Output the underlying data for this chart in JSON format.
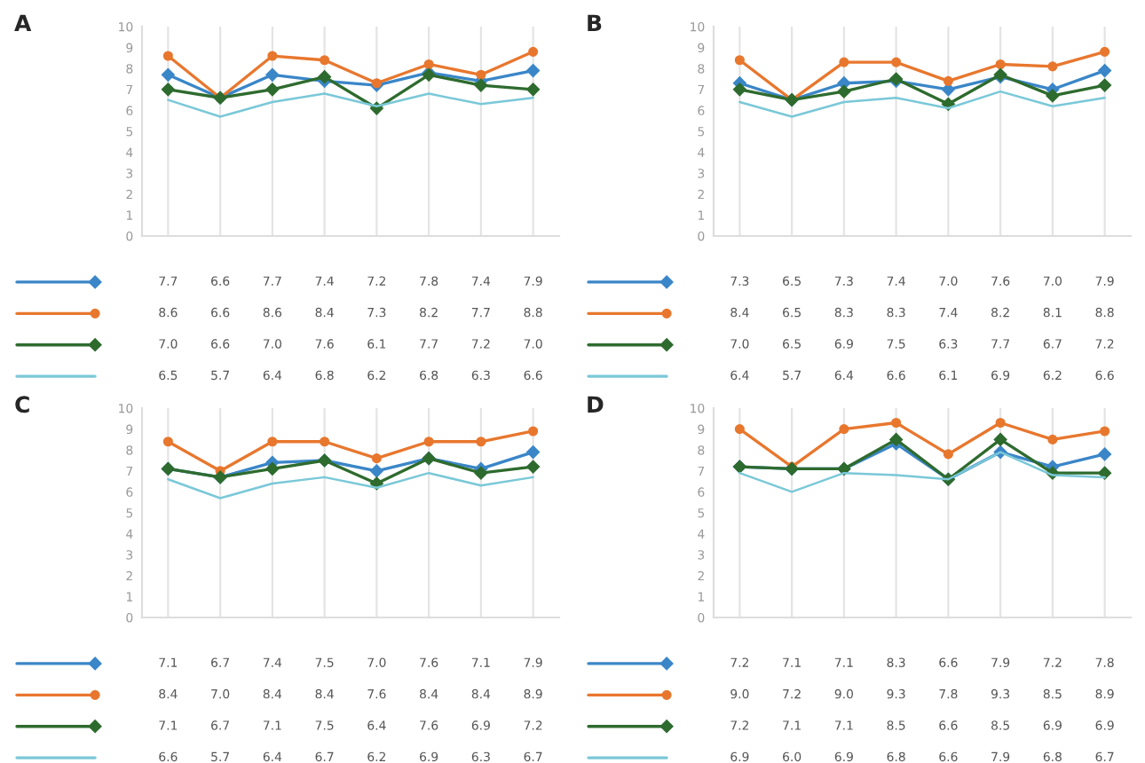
{
  "chart_data": [
    {
      "type": "line",
      "title": "A",
      "categories": [
        null,
        null,
        null,
        null,
        null,
        null,
        null,
        null
      ],
      "ylim": [
        0,
        10
      ],
      "yticks": [
        0,
        1,
        2,
        3,
        4,
        5,
        6,
        7,
        8,
        9,
        10
      ],
      "grid": "x",
      "series": [
        {
          "color": "#3a86c8",
          "marker": "diamond",
          "values": [
            7.7,
            6.6,
            7.7,
            7.4,
            7.2,
            7.8,
            7.4,
            7.9
          ],
          "value_labels": [
            "7.7",
            "6.6",
            "7.7",
            "7.4",
            "7.2",
            "7.8",
            "7.4",
            "7.9"
          ]
        },
        {
          "color": "#e8772e",
          "marker": "circle",
          "values": [
            8.6,
            6.6,
            8.6,
            8.4,
            7.3,
            8.2,
            7.7,
            8.8
          ],
          "value_labels": [
            "8.6",
            "6.6",
            "8.6",
            "8.4",
            "7.3",
            "8.2",
            "7.7",
            "8.8"
          ]
        },
        {
          "color": "#2e6b2e",
          "marker": "diamond",
          "values": [
            7.0,
            6.6,
            7.0,
            7.6,
            6.1,
            7.7,
            7.2,
            7.0
          ],
          "value_labels": [
            "7.0",
            "6.6",
            "7.0",
            "7.6",
            "6.1",
            "7.7",
            "7.2",
            "7.0"
          ]
        },
        {
          "color": "#7ac8d8",
          "marker": "none",
          "values": [
            6.5,
            5.7,
            6.4,
            6.8,
            6.2,
            6.8,
            6.3,
            6.6
          ],
          "value_labels": [
            "6.5",
            "5.7",
            "6.4",
            "6.8",
            "6.2",
            "6.8",
            "6.3",
            "6.6"
          ]
        }
      ]
    },
    {
      "type": "line",
      "title": "B",
      "categories": [
        null,
        null,
        null,
        null,
        null,
        null,
        null,
        null
      ],
      "ylim": [
        0,
        10
      ],
      "yticks": [
        0,
        1,
        2,
        3,
        4,
        5,
        6,
        7,
        8,
        9,
        10
      ],
      "grid": "x",
      "series": [
        {
          "color": "#3a86c8",
          "marker": "diamond",
          "values": [
            7.3,
            6.5,
            7.3,
            7.4,
            7.0,
            7.6,
            7.0,
            7.9
          ],
          "value_labels": [
            "7.3",
            "6.5",
            "7.3",
            "7.4",
            "7.0",
            "7.6",
            "7.0",
            "7.9"
          ]
        },
        {
          "color": "#e8772e",
          "marker": "circle",
          "values": [
            8.4,
            6.5,
            8.3,
            8.3,
            7.4,
            8.2,
            8.1,
            8.8
          ],
          "value_labels": [
            "8.4",
            "6.5",
            "8.3",
            "8.3",
            "7.4",
            "8.2",
            "8.1",
            "8.8"
          ]
        },
        {
          "color": "#2e6b2e",
          "marker": "diamond",
          "values": [
            7.0,
            6.5,
            6.9,
            7.5,
            6.3,
            7.7,
            6.7,
            7.2
          ],
          "value_labels": [
            "7.0",
            "6.5",
            "6.9",
            "7.5",
            "6.3",
            "7.7",
            "6.7",
            "7.2"
          ]
        },
        {
          "color": "#7ac8d8",
          "marker": "none",
          "values": [
            6.4,
            5.7,
            6.4,
            6.6,
            6.1,
            6.9,
            6.2,
            6.6
          ],
          "value_labels": [
            "6.4",
            "5.7",
            "6.4",
            "6.6",
            "6.1",
            "6.9",
            "6.2",
            "6.6"
          ]
        }
      ]
    },
    {
      "type": "line",
      "title": "C",
      "categories": [
        null,
        null,
        null,
        null,
        null,
        null,
        null,
        null
      ],
      "ylim": [
        0,
        10
      ],
      "yticks": [
        0,
        1,
        2,
        3,
        4,
        5,
        6,
        7,
        8,
        9,
        10
      ],
      "grid": "x",
      "series": [
        {
          "color": "#3a86c8",
          "marker": "diamond",
          "values": [
            7.1,
            6.7,
            7.4,
            7.5,
            7.0,
            7.6,
            7.1,
            7.9
          ],
          "value_labels": [
            "7.1",
            "6.7",
            "7.4",
            "7.5",
            "7.0",
            "7.6",
            "7.1",
            "7.9"
          ]
        },
        {
          "color": "#e8772e",
          "marker": "circle",
          "values": [
            8.4,
            7.0,
            8.4,
            8.4,
            7.6,
            8.4,
            8.4,
            8.9
          ],
          "value_labels": [
            "8.4",
            "7.0",
            "8.4",
            "8.4",
            "7.6",
            "8.4",
            "8.4",
            "8.9"
          ]
        },
        {
          "color": "#2e6b2e",
          "marker": "diamond",
          "values": [
            7.1,
            6.7,
            7.1,
            7.5,
            6.4,
            7.6,
            6.9,
            7.2
          ],
          "value_labels": [
            "7.1",
            "6.7",
            "7.1",
            "7.5",
            "6.4",
            "7.6",
            "6.9",
            "7.2"
          ]
        },
        {
          "color": "#7ac8d8",
          "marker": "none",
          "values": [
            6.6,
            5.7,
            6.4,
            6.7,
            6.2,
            6.9,
            6.3,
            6.7
          ],
          "value_labels": [
            "6.6",
            "5.7",
            "6.4",
            "6.7",
            "6.2",
            "6.9",
            "6.3",
            "6.7"
          ]
        }
      ]
    },
    {
      "type": "line",
      "title": "D",
      "categories": [
        null,
        null,
        null,
        null,
        null,
        null,
        null,
        null
      ],
      "ylim": [
        0,
        10
      ],
      "yticks": [
        0,
        1,
        2,
        3,
        4,
        5,
        6,
        7,
        8,
        9,
        10
      ],
      "grid": "x",
      "series": [
        {
          "color": "#3a86c8",
          "marker": "diamond",
          "values": [
            7.2,
            7.1,
            7.1,
            8.3,
            6.6,
            7.9,
            7.2,
            7.8
          ],
          "value_labels": [
            "7.2",
            "7.1",
            "7.1",
            "8.3",
            "6.6",
            "7.9",
            "7.2",
            "7.8"
          ]
        },
        {
          "color": "#e8772e",
          "marker": "circle",
          "values": [
            9.0,
            7.2,
            9.0,
            9.3,
            7.8,
            9.3,
            8.5,
            8.9
          ],
          "value_labels": [
            "9.0",
            "7.2",
            "9.0",
            "9.3",
            "7.8",
            "9.3",
            "8.5",
            "8.9"
          ]
        },
        {
          "color": "#2e6b2e",
          "marker": "diamond",
          "values": [
            7.2,
            7.1,
            7.1,
            8.5,
            6.6,
            8.5,
            6.9,
            6.9
          ],
          "value_labels": [
            "7.2",
            "7.1",
            "7.1",
            "8.5",
            "6.6",
            "8.5",
            "6.9",
            "6.9"
          ]
        },
        {
          "color": "#7ac8d8",
          "marker": "none",
          "values": [
            6.9,
            6.0,
            6.9,
            6.8,
            6.6,
            7.9,
            6.8,
            6.7
          ],
          "value_labels": [
            "6.9",
            "6.0",
            "6.9",
            "6.8",
            "6.6",
            "7.9",
            "6.8",
            "6.7"
          ]
        }
      ]
    }
  ]
}
